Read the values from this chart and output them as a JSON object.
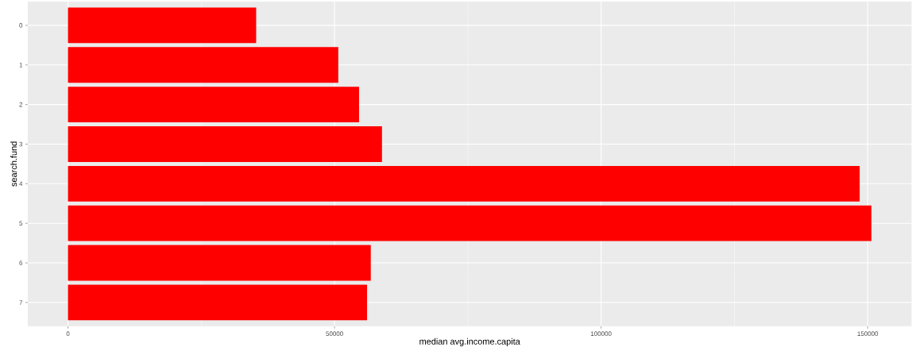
{
  "chart_data": {
    "type": "bar",
    "orientation": "horizontal",
    "xlabel": "median avg.income.capita",
    "ylabel": "search.fund",
    "categories": [
      "0",
      "1",
      "2",
      "3",
      "4",
      "5",
      "6",
      "7"
    ],
    "values": [
      35300,
      50700,
      54600,
      58900,
      148500,
      150700,
      56800,
      56100
    ],
    "color": "#ff0000",
    "xlim": [
      -7535,
      158235
    ],
    "xticks": [
      0,
      50000,
      100000,
      150000
    ],
    "grid": true
  }
}
